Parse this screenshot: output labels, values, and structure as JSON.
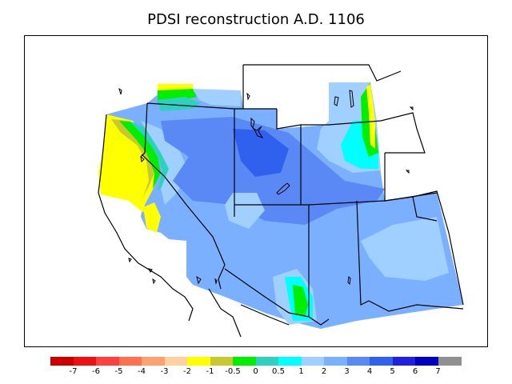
{
  "title": "PDSI reconstruction A.D. 1106",
  "legend": {
    "labels": [
      "-7",
      "-6",
      "-5",
      "-4",
      "-3",
      "-2",
      "-1",
      "-0.5",
      "0",
      "0.5",
      "1",
      "2",
      "3",
      "4",
      "5",
      "6",
      "7"
    ],
    "colors": [
      "#cc0000",
      "#ee1111",
      "#ff4040",
      "#ff7050",
      "#ffa070",
      "#ffd0a0",
      "#ffff00",
      "#c8c830",
      "#00ee00",
      "#30d0c0",
      "#00ffff",
      "#a0d0ff",
      "#7ab0ff",
      "#5a88f5",
      "#3060ee",
      "#2020e0",
      "#0000c0",
      "#909090"
    ]
  }
}
